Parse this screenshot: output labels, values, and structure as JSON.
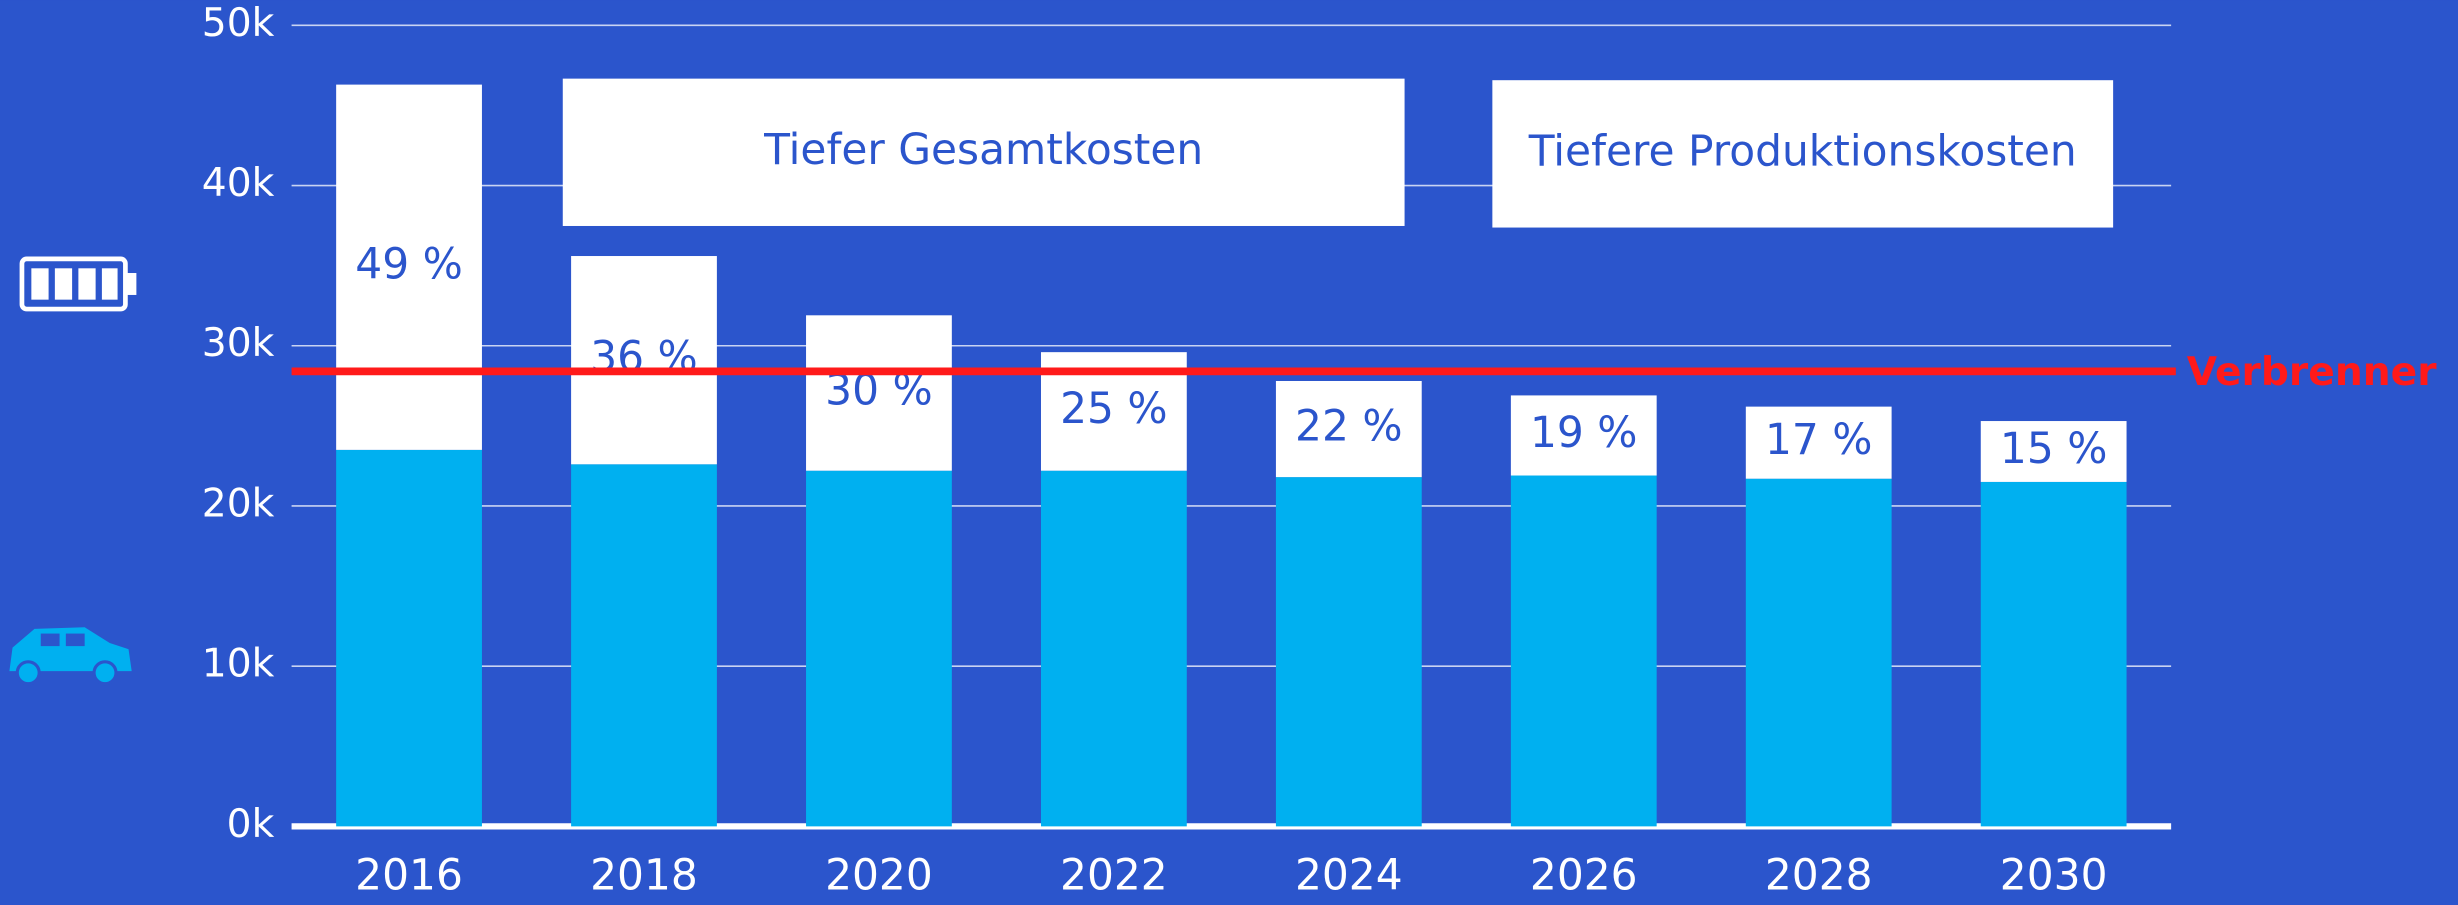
{
  "chart_data": {
    "type": "stacked_bar",
    "categories": [
      "2016",
      "2018",
      "2020",
      "2022",
      "2024",
      "2026",
      "2028",
      "2030"
    ],
    "series": [
      {
        "color": "#00b0f0",
        "values": [
          23500,
          22600,
          22200,
          22200,
          21800,
          21900,
          21700,
          21500
        ]
      },
      {
        "color": "#ffffff",
        "values": [
          22800,
          13000,
          9700,
          7400,
          6000,
          5000,
          4500,
          3800
        ],
        "share_labels": [
          "49 %",
          "36 %",
          "30 %",
          "25 %",
          "22 %",
          "19 %",
          "17 %",
          "15 %"
        ]
      }
    ],
    "ylim": [
      0,
      50000
    ],
    "yticks": [
      {
        "value": 0,
        "label": "0k"
      },
      {
        "value": 10000,
        "label": "10k"
      },
      {
        "value": 20000,
        "label": "20k"
      },
      {
        "value": 30000,
        "label": "30k"
      },
      {
        "value": 40000,
        "label": "40k"
      },
      {
        "value": 50000,
        "label": "50k"
      }
    ],
    "grid": true,
    "reference_line": {
      "label": "Verbrenner",
      "value": 28400,
      "color": "#ff1a1a"
    },
    "annotations": [
      "Tiefer Gesamtkosten",
      "Tiefere Produktionskosten"
    ]
  }
}
